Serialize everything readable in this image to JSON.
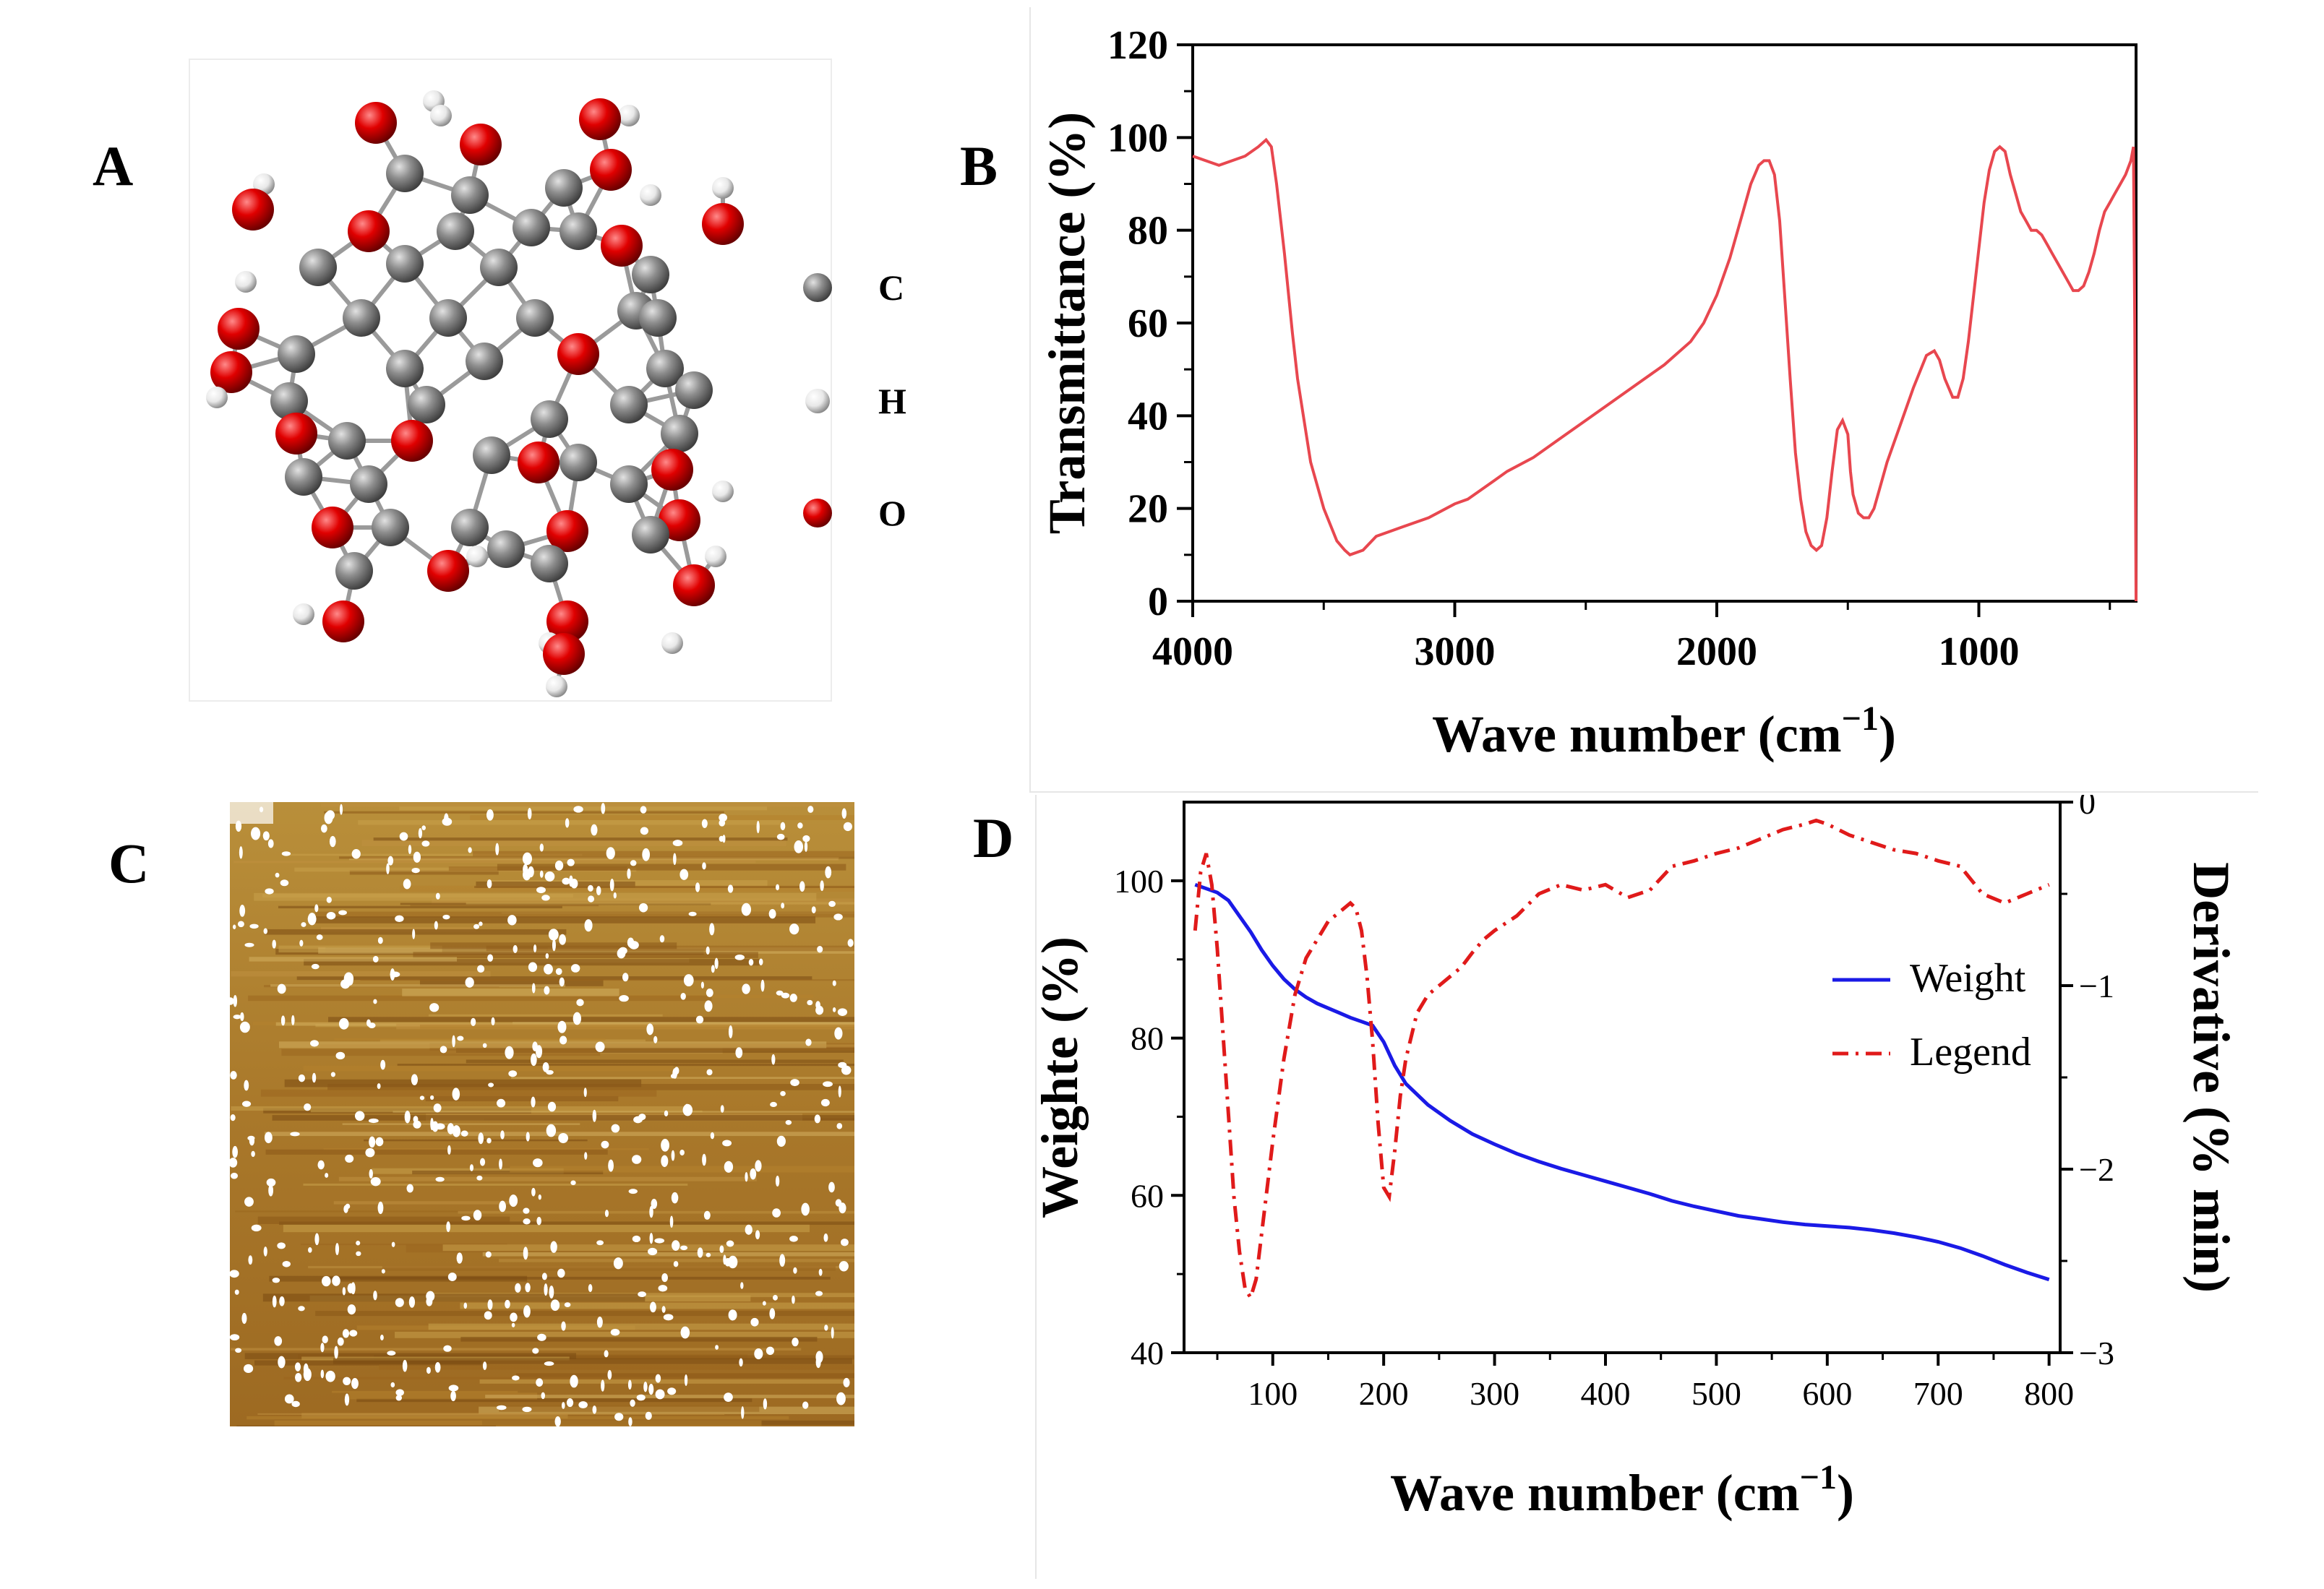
{
  "panels": {
    "a": {
      "letter": "A",
      "legend": [
        "C",
        "H",
        "O"
      ],
      "legend_colors": {
        "C": "#8c8c8c",
        "H": "#f2f2f2",
        "O": "#e00000"
      }
    },
    "b": {
      "letter": "B"
    },
    "c": {
      "letter": "C"
    },
    "d": {
      "letter": "D"
    }
  },
  "chart_data": [
    {
      "id": "panel-b",
      "type": "line",
      "xlabel": "Wave number (cm",
      "xlabel_sup": "−1",
      "xlabel_end": ")",
      "ylabel": "Transmittance (%)",
      "xlim": [
        4000,
        400
      ],
      "ylim": [
        0,
        120
      ],
      "xticks": [
        "4000",
        "3000",
        "2000",
        "1000"
      ],
      "yticks": [
        "0",
        "20",
        "40",
        "60",
        "80",
        "100",
        "120"
      ],
      "series": [
        {
          "color": "#e8474f",
          "x": [
            4000,
            3950,
            3900,
            3850,
            3800,
            3750,
            3720,
            3700,
            3680,
            3650,
            3620,
            3600,
            3550,
            3500,
            3450,
            3420,
            3400,
            3350,
            3300,
            3250,
            3200,
            3100,
            3000,
            2950,
            2900,
            2850,
            2800,
            2700,
            2600,
            2500,
            2400,
            2300,
            2200,
            2100,
            2050,
            2000,
            1950,
            1900,
            1870,
            1840,
            1820,
            1800,
            1780,
            1760,
            1740,
            1720,
            1700,
            1680,
            1660,
            1640,
            1620,
            1600,
            1580,
            1560,
            1540,
            1520,
            1500,
            1490,
            1480,
            1460,
            1440,
            1420,
            1400,
            1380,
            1350,
            1300,
            1250,
            1200,
            1170,
            1150,
            1130,
            1100,
            1080,
            1060,
            1040,
            1020,
            1000,
            980,
            960,
            940,
            920,
            900,
            880,
            860,
            840,
            820,
            800,
            780,
            760,
            740,
            720,
            700,
            680,
            660,
            640,
            620,
            600,
            580,
            560,
            540,
            520,
            500,
            480,
            460,
            440,
            420,
            410,
            405,
            400
          ],
          "y": [
            96,
            95,
            94,
            95,
            96,
            98,
            99.5,
            98,
            90,
            75,
            58,
            48,
            30,
            20,
            13,
            11,
            10,
            11,
            14,
            15,
            16,
            18,
            21,
            22,
            24,
            26,
            28,
            31,
            35,
            39,
            43,
            47,
            51,
            56,
            60,
            66,
            74,
            84,
            90,
            94,
            95,
            95,
            92,
            82,
            65,
            48,
            32,
            22,
            15,
            12,
            11,
            12,
            18,
            28,
            37,
            39,
            36,
            28,
            23,
            19,
            18,
            18,
            20,
            24,
            30,
            38,
            46,
            53,
            54,
            52,
            48,
            44,
            44,
            48,
            56,
            66,
            76,
            86,
            93,
            97,
            98,
            97,
            92,
            88,
            84,
            82,
            80,
            80,
            79,
            77,
            75,
            73,
            71,
            69,
            67,
            67,
            68,
            71,
            75,
            80,
            84,
            86,
            88,
            90,
            92,
            95,
            98,
            60,
            0
          ]
        }
      ]
    },
    {
      "id": "panel-d",
      "type": "line",
      "xlabel": "Wave number (cm",
      "xlabel_sup": "−1",
      "xlabel_end": ")",
      "ylabel": "Weighte (%)",
      "ylabel_right": "Derivative (% min)",
      "xlim": [
        20,
        810
      ],
      "ylim": [
        40,
        110
      ],
      "ylim_right": [
        -3,
        0
      ],
      "xticks": [
        "100",
        "200",
        "300",
        "400",
        "500",
        "600",
        "700",
        "800"
      ],
      "yticks": [
        "40",
        "60",
        "80",
        "100"
      ],
      "yticks_right": [
        "−3",
        "−2",
        "−1",
        "0"
      ],
      "legend_position": "right",
      "series": [
        {
          "name": "Weight",
          "axis": "left",
          "color": "#1a1ae6",
          "style": "solid",
          "x": [
            30,
            40,
            50,
            60,
            70,
            80,
            90,
            100,
            110,
            120,
            130,
            140,
            150,
            160,
            170,
            180,
            190,
            200,
            210,
            220,
            240,
            260,
            280,
            300,
            320,
            340,
            360,
            380,
            400,
            420,
            440,
            460,
            480,
            500,
            520,
            540,
            560,
            580,
            600,
            620,
            640,
            660,
            680,
            700,
            720,
            740,
            760,
            780,
            800
          ],
          "y": [
            99.5,
            99,
            98.5,
            97.5,
            95.5,
            93.5,
            91.2,
            89.2,
            87.5,
            86.2,
            85.2,
            84.4,
            83.8,
            83.2,
            82.6,
            82.1,
            81.6,
            79.5,
            76.5,
            74.2,
            71.5,
            69.5,
            67.8,
            66.5,
            65.3,
            64.3,
            63.4,
            62.6,
            61.8,
            61.0,
            60.2,
            59.3,
            58.6,
            58.0,
            57.4,
            57.0,
            56.6,
            56.3,
            56.1,
            55.9,
            55.6,
            55.2,
            54.7,
            54.1,
            53.3,
            52.3,
            51.2,
            50.2,
            49.3
          ]
        },
        {
          "name": "Legend",
          "axis": "right",
          "color": "#e01a1a",
          "style": "dashdot",
          "x": [
            30,
            35,
            40,
            45,
            50,
            55,
            60,
            65,
            70,
            75,
            80,
            85,
            90,
            100,
            110,
            120,
            130,
            140,
            150,
            160,
            170,
            175,
            180,
            185,
            190,
            195,
            200,
            205,
            210,
            215,
            220,
            230,
            240,
            250,
            260,
            270,
            280,
            290,
            300,
            320,
            340,
            360,
            380,
            400,
            420,
            440,
            460,
            480,
            500,
            520,
            540,
            560,
            580,
            590,
            600,
            620,
            640,
            660,
            680,
            700,
            720,
            740,
            760,
            780,
            800
          ],
          "y": [
            -0.7,
            -0.38,
            -0.28,
            -0.45,
            -0.8,
            -1.25,
            -1.7,
            -2.15,
            -2.45,
            -2.65,
            -2.7,
            -2.6,
            -2.35,
            -1.85,
            -1.4,
            -1.05,
            -0.85,
            -0.75,
            -0.65,
            -0.6,
            -0.55,
            -0.58,
            -0.7,
            -0.95,
            -1.3,
            -1.75,
            -2.1,
            -2.15,
            -1.9,
            -1.6,
            -1.4,
            -1.15,
            -1.05,
            -1.0,
            -0.95,
            -0.9,
            -0.82,
            -0.75,
            -0.7,
            -0.62,
            -0.5,
            -0.45,
            -0.48,
            -0.45,
            -0.52,
            -0.48,
            -0.35,
            -0.32,
            -0.28,
            -0.25,
            -0.2,
            -0.15,
            -0.12,
            -0.1,
            -0.12,
            -0.18,
            -0.22,
            -0.26,
            -0.28,
            -0.32,
            -0.35,
            -0.5,
            -0.55,
            -0.5,
            -0.45
          ]
        }
      ]
    }
  ]
}
